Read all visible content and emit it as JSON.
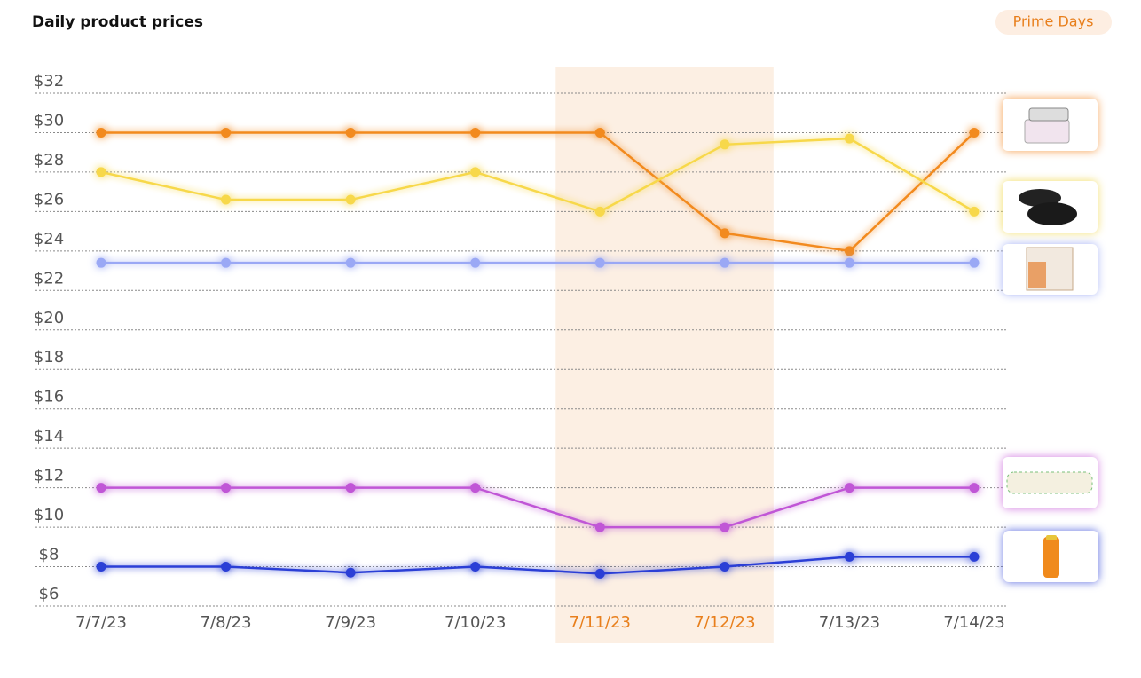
{
  "chart_data": {
    "type": "line",
    "title": "Daily product prices",
    "highlight_label": "Prime Days",
    "highlight_categories": [
      "7/11/23",
      "7/12/23"
    ],
    "highlight_color": "#e87f1c",
    "categories": [
      "7/7/23",
      "7/8/23",
      "7/9/23",
      "7/10/23",
      "7/11/23",
      "7/12/23",
      "7/13/23",
      "7/14/23"
    ],
    "series": [
      {
        "color": "#f28a1e",
        "values": [
          30,
          30,
          30,
          30,
          30,
          24.9,
          24.0,
          30
        ]
      },
      {
        "color": "#f7d84a",
        "values": [
          28,
          26.6,
          26.6,
          28,
          26,
          29.4,
          29.7,
          26
        ]
      },
      {
        "color": "#9aa8f5",
        "values": [
          23.4,
          23.4,
          23.4,
          23.4,
          23.4,
          23.4,
          23.4,
          23.4
        ]
      },
      {
        "color": "#c056d6",
        "values": [
          12,
          12,
          12,
          12,
          10,
          10,
          12,
          12
        ]
      },
      {
        "color": "#2b3fd6",
        "values": [
          8,
          8,
          7.7,
          8,
          7.65,
          8,
          8.5,
          8.5
        ]
      }
    ],
    "ylim": [
      6,
      32
    ],
    "yticks": [
      {
        "value": 6,
        "label": "$6"
      },
      {
        "value": 8,
        "label": "$8"
      },
      {
        "value": 10,
        "label": "$10"
      },
      {
        "value": 12,
        "label": "$12"
      },
      {
        "value": 14,
        "label": "$14"
      },
      {
        "value": 16,
        "label": "$16"
      },
      {
        "value": 18,
        "label": "$18"
      },
      {
        "value": 20,
        "label": "$20"
      },
      {
        "value": 22,
        "label": "$22"
      },
      {
        "value": 24,
        "label": "$24"
      },
      {
        "value": 26,
        "label": "$26"
      },
      {
        "value": 28,
        "label": "$28"
      },
      {
        "value": 30,
        "label": "$30"
      },
      {
        "value": 32,
        "label": "$32"
      }
    ],
    "grid": true
  }
}
